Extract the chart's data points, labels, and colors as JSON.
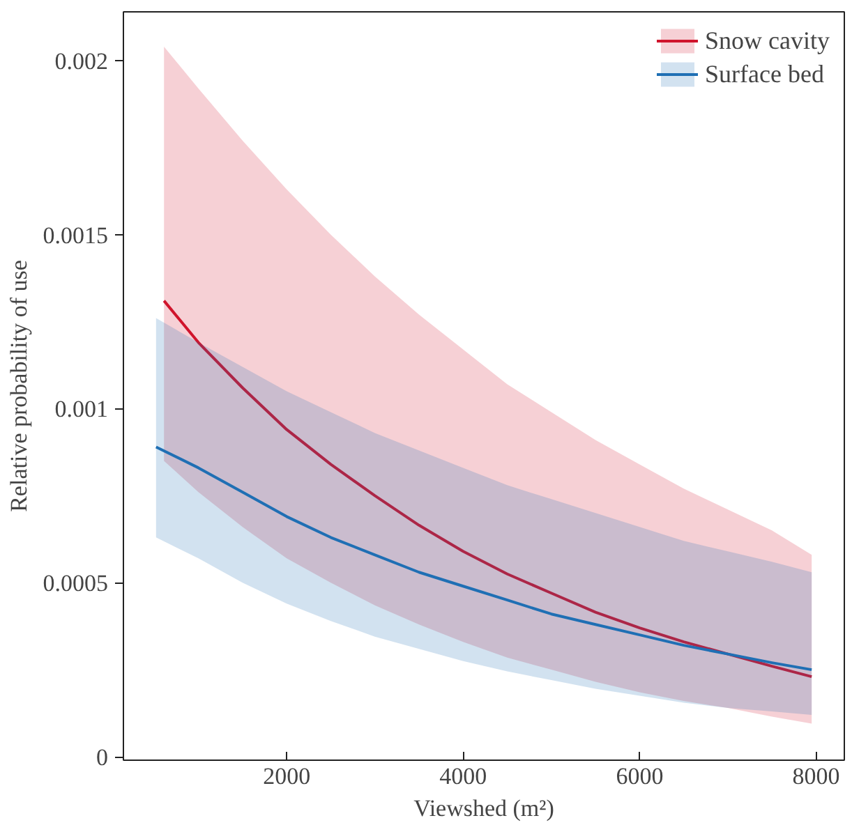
{
  "chart_data": {
    "type": "line",
    "xlabel": "Viewshed (m²)",
    "ylabel": "Relative probability of use",
    "xlim": [
      150,
      8320
    ],
    "ylim": [
      -1e-05,
      0.00214
    ],
    "xticks": [
      2000,
      4000,
      6000,
      8000
    ],
    "yticks": [
      0,
      0.0005,
      0.001,
      0.0015,
      0.002
    ],
    "grid": false,
    "legend": "top right",
    "marker": "none",
    "line_style": "solid",
    "series": [
      {
        "name": "Snow cavity",
        "color": "#d0142c",
        "x": [
          610,
          1000,
          1500,
          2000,
          2500,
          3000,
          3500,
          4000,
          4500,
          5000,
          5500,
          6000,
          6500,
          7000,
          7500,
          7950
        ],
        "values": [
          0.00131,
          0.00119,
          0.00106,
          0.00094,
          0.00084,
          0.00075,
          0.000665,
          0.00059,
          0.000525,
          0.00047,
          0.000415,
          0.00037,
          0.00033,
          0.000295,
          0.00026,
          0.00023
        ],
        "upper": [
          0.00204,
          0.00192,
          0.00177,
          0.00163,
          0.0015,
          0.00138,
          0.00127,
          0.00117,
          0.00107,
          0.00099,
          0.00091,
          0.00084,
          0.00077,
          0.00071,
          0.00065,
          0.00058
        ],
        "lower": [
          0.00085,
          0.00076,
          0.00066,
          0.00057,
          0.0005,
          0.000435,
          0.00038,
          0.00033,
          0.000285,
          0.00025,
          0.000215,
          0.000185,
          0.00016,
          0.00014,
          0.000115,
          9.5e-05
        ]
      },
      {
        "name": "Surface bed",
        "color": "#1f6fb4",
        "x": [
          520,
          1000,
          1500,
          2000,
          2500,
          3000,
          3500,
          4000,
          4500,
          5000,
          5500,
          6000,
          6500,
          7000,
          7500,
          7950
        ],
        "values": [
          0.00089,
          0.00083,
          0.00076,
          0.00069,
          0.00063,
          0.00058,
          0.00053,
          0.00049,
          0.00045,
          0.00041,
          0.00038,
          0.00035,
          0.00032,
          0.000295,
          0.00027,
          0.00025
        ],
        "upper": [
          0.00126,
          0.00119,
          0.00112,
          0.00105,
          0.00099,
          0.00093,
          0.00088,
          0.00083,
          0.00078,
          0.00074,
          0.0007,
          0.00066,
          0.00062,
          0.00059,
          0.00056,
          0.00053
        ],
        "lower": [
          0.00063,
          0.00057,
          0.0005,
          0.00044,
          0.00039,
          0.000345,
          0.00031,
          0.000275,
          0.000245,
          0.00022,
          0.000195,
          0.000175,
          0.000155,
          0.00014,
          0.00013,
          0.00012
        ]
      }
    ]
  }
}
